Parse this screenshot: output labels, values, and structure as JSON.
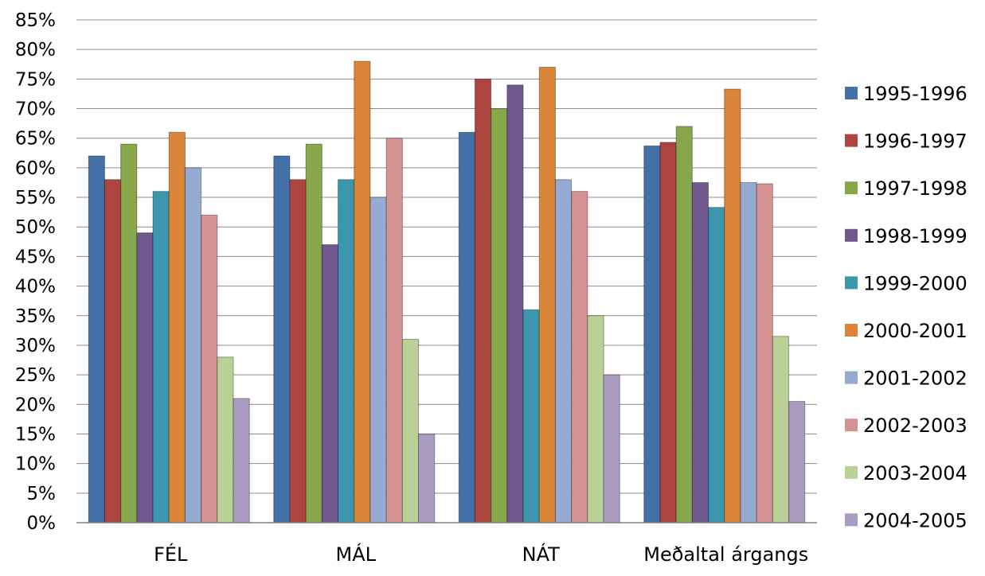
{
  "chart_data": {
    "type": "bar",
    "categories": [
      "FÉL",
      "MÁL",
      "NÁT",
      "Meðaltal árgangs"
    ],
    "ylim": [
      0,
      85
    ],
    "ytick_step": 5,
    "ytick_suffix": "%",
    "grid": "horizontal",
    "legend_position": "right",
    "title": "",
    "xlabel": "",
    "ylabel": "",
    "series": [
      {
        "name": "1995-1996",
        "color": "#4470A8",
        "values": [
          62,
          62,
          66,
          63.7
        ]
      },
      {
        "name": "1996-1997",
        "color": "#AC4440",
        "values": [
          58,
          58,
          75,
          64.3
        ]
      },
      {
        "name": "1997-1998",
        "color": "#88A64A",
        "values": [
          64,
          64,
          70,
          67
        ]
      },
      {
        "name": "1998-1999",
        "color": "#70588F",
        "values": [
          49,
          47,
          74,
          57.5
        ]
      },
      {
        "name": "1999-2000",
        "color": "#3C96AE",
        "values": [
          56,
          58,
          36,
          53.3
        ]
      },
      {
        "name": "2000-2001",
        "color": "#DA8538",
        "values": [
          66,
          78,
          77,
          73.3
        ]
      },
      {
        "name": "2001-2002",
        "color": "#95ABD2",
        "values": [
          60,
          55,
          58,
          57.5
        ]
      },
      {
        "name": "2002-2003",
        "color": "#D49392",
        "values": [
          52,
          65,
          56,
          57.3
        ]
      },
      {
        "name": "2003-2004",
        "color": "#B9D097",
        "values": [
          28,
          31,
          35,
          31.5
        ]
      },
      {
        "name": "2004-2005",
        "color": "#A99CC0",
        "values": [
          21,
          15,
          25,
          20.5
        ]
      }
    ]
  }
}
